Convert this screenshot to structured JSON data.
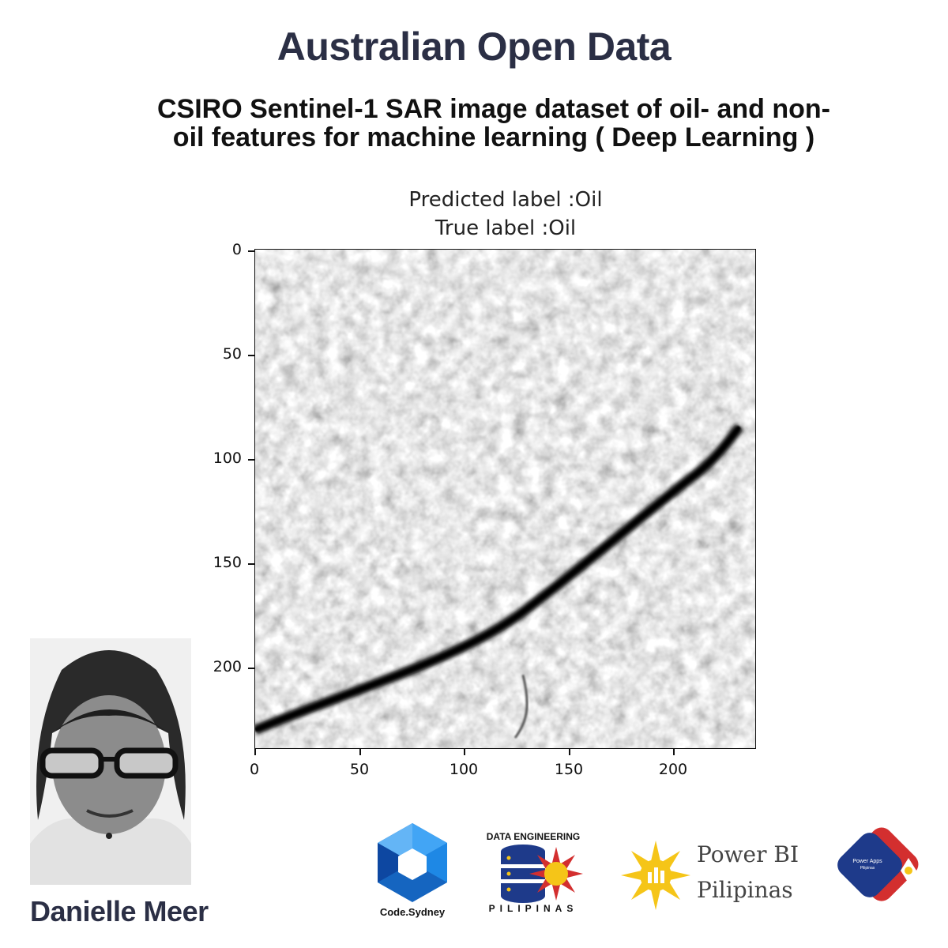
{
  "header": {
    "title": "Australian Open Data",
    "subtitle_line1": "CSIRO Sentinel-1 SAR image dataset of oil- and non-",
    "subtitle_line2": "oil features for machine learning ( Deep Learning )"
  },
  "plot": {
    "predicted_label": "Predicted label :Oil",
    "true_label": "True label :Oil",
    "y_ticks": [
      "0",
      "50",
      "100",
      "150",
      "200"
    ],
    "x_ticks": [
      "0",
      "50",
      "100",
      "150",
      "200"
    ],
    "image_description_colormap": "grayscale"
  },
  "author": {
    "name": "Danielle Meer"
  },
  "logos": {
    "codesydney": "Code.Sydney",
    "data_eng_top": "DATA ENGINEERING",
    "data_eng_bottom": "PILIPINAS",
    "powerbi_line1": "Power BI",
    "powerbi_line2": "Pilipinas",
    "powerapps_line1": "Power Apps",
    "powerapps_line2": "Pilipinas"
  },
  "colors": {
    "title": "#2b2f45",
    "codesydney_blue": "#1e88e5",
    "sun_yellow": "#f5c518",
    "flag_red": "#d32f2f",
    "flag_blue": "#1e3a8a"
  }
}
